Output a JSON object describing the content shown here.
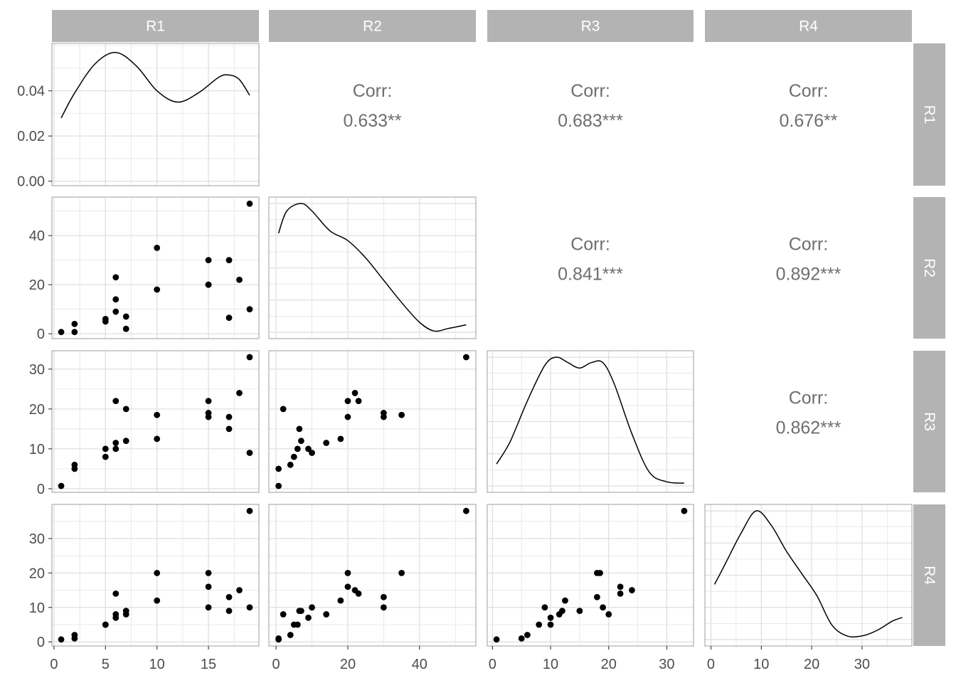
{
  "chart_data": {
    "type": "scatter",
    "variables": [
      "R1",
      "R2",
      "R3",
      "R4"
    ],
    "strips": {
      "top": [
        "R1",
        "R2",
        "R3",
        "R4"
      ],
      "right": [
        "R1",
        "R2",
        "R3",
        "R4"
      ]
    },
    "points": [
      {
        "R1": 0.7,
        "R2": 0.7,
        "R3": 0.7,
        "R4": 0.7
      },
      {
        "R1": 2,
        "R2": 0.7,
        "R3": 5,
        "R4": 1
      },
      {
        "R1": 2,
        "R2": 4,
        "R3": 6,
        "R4": 2
      },
      {
        "R1": 5,
        "R2": 5,
        "R3": 8,
        "R4": 5
      },
      {
        "R1": 5,
        "R2": 6,
        "R3": 10,
        "R4": 5
      },
      {
        "R1": 6,
        "R2": 23,
        "R3": 22,
        "R4": 14
      },
      {
        "R1": 6,
        "R2": 14,
        "R3": 11.5,
        "R4": 8
      },
      {
        "R1": 6,
        "R2": 9,
        "R3": 10,
        "R4": 7
      },
      {
        "R1": 7,
        "R2": 7,
        "R3": 12,
        "R4": 9
      },
      {
        "R1": 7,
        "R2": 2,
        "R3": 20,
        "R4": 8
      },
      {
        "R1": 10,
        "R2": 35,
        "R3": 18.5,
        "R4": 20
      },
      {
        "R1": 10,
        "R2": 18,
        "R3": 12.5,
        "R4": 12
      },
      {
        "R1": 15,
        "R2": 30,
        "R3": 19,
        "R4": 10
      },
      {
        "R1": 15,
        "R2": 20,
        "R3": 22,
        "R4": 16
      },
      {
        "R1": 15,
        "R2": 20,
        "R3": 18,
        "R4": 20
      },
      {
        "R1": 17,
        "R2": 30,
        "R3": 18,
        "R4": 13
      },
      {
        "R1": 17,
        "R2": 6.5,
        "R3": 15,
        "R4": 9
      },
      {
        "R1": 18,
        "R2": 22,
        "R3": 24,
        "R4": 15
      },
      {
        "R1": 19,
        "R2": 10,
        "R3": 9,
        "R4": 10
      },
      {
        "R1": 19,
        "R2": 53,
        "R3": 33,
        "R4": 38
      }
    ],
    "density": {
      "R1": {
        "x": [
          0.7,
          2,
          4,
          6,
          8,
          10,
          12,
          14,
          16,
          17,
          18,
          19
        ],
        "y": [
          0.028,
          0.039,
          0.052,
          0.057,
          0.051,
          0.04,
          0.035,
          0.039,
          0.046,
          0.047,
          0.045,
          0.038
        ],
        "ylim": [
          -0.002,
          0.061
        ],
        "yticks": [
          0,
          0.02,
          0.04
        ],
        "ytick_labels": [
          "0.00",
          "0.02",
          "0.04"
        ]
      },
      "R2": {
        "x": [
          0.7,
          3,
          7,
          10,
          15,
          20,
          25,
          30,
          35,
          40,
          44,
          48,
          53
        ],
        "y": [
          0.04,
          0.049,
          0.052,
          0.049,
          0.041,
          0.037,
          0.03,
          0.021,
          0.012,
          0.004,
          0.0005,
          0.0015,
          0.003
        ]
      },
      "R3": {
        "x": [
          0.7,
          3,
          6,
          9,
          11,
          13,
          15,
          17,
          19,
          21,
          24,
          27,
          30,
          33
        ],
        "y": [
          0.008,
          0.016,
          0.031,
          0.044,
          0.047,
          0.045,
          0.043,
          0.045,
          0.045,
          0.037,
          0.019,
          0.005,
          0.0015,
          0.001
        ]
      },
      "R4": {
        "x": [
          0.7,
          3,
          6,
          9,
          12,
          15,
          18,
          21,
          24,
          27,
          30,
          33,
          36,
          38
        ],
        "y": [
          0.03,
          0.042,
          0.058,
          0.07,
          0.062,
          0.048,
          0.036,
          0.024,
          0.008,
          0.002,
          0.002,
          0.005,
          0.01,
          0.012
        ]
      }
    },
    "correlations": [
      {
        "row": "R1",
        "col": "R2",
        "label": "Corr:",
        "value": "0.633**"
      },
      {
        "row": "R1",
        "col": "R3",
        "label": "Corr:",
        "value": "0.683***"
      },
      {
        "row": "R1",
        "col": "R4",
        "label": "Corr:",
        "value": "0.676**"
      },
      {
        "row": "R2",
        "col": "R3",
        "label": "Corr:",
        "value": "0.841***"
      },
      {
        "row": "R2",
        "col": "R4",
        "label": "Corr:",
        "value": "0.892***"
      },
      {
        "row": "R3",
        "col": "R4",
        "label": "Corr:",
        "value": "0.862***"
      }
    ],
    "axes": {
      "R1": {
        "lim": [
          -0.2,
          19.9
        ],
        "ticks": [
          0,
          5,
          10,
          15
        ],
        "tick_labels": [
          "0",
          "5",
          "10",
          "15"
        ]
      },
      "R2": {
        "lim": [
          -2,
          55.7
        ],
        "ticks": [
          0,
          20,
          40
        ],
        "tick_labels": [
          "0",
          "20",
          "40"
        ]
      },
      "R3": {
        "lim": [
          -0.9,
          34.6
        ],
        "ticks": [
          0,
          10,
          20,
          30
        ],
        "tick_labels": [
          "0",
          "10",
          "20",
          "30"
        ]
      },
      "R4": {
        "lim": [
          -1.2,
          39.9
        ],
        "ticks": [
          0,
          10,
          20,
          30
        ],
        "tick_labels": [
          "0",
          "10",
          "20",
          "30"
        ]
      }
    },
    "grid": true,
    "colors": {
      "strip": "#b3b3b3",
      "point": "#000000",
      "line": "#000000",
      "grid": "#e0e0e0",
      "border": "#b3b3b3",
      "corr_text": "#6e6e6e"
    }
  }
}
